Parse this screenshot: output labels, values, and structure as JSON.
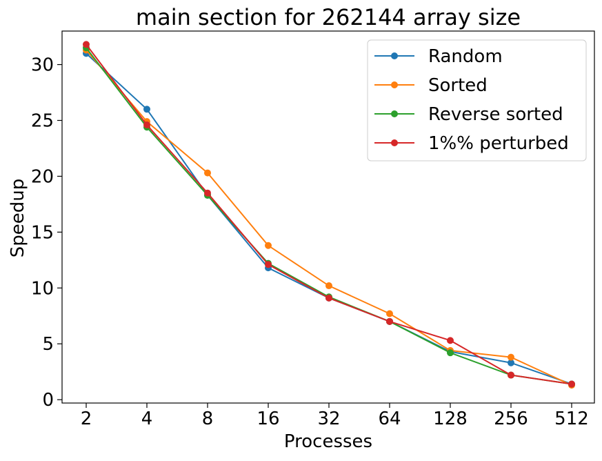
{
  "chart_data": {
    "type": "line",
    "title": "main section for 262144 array size",
    "xlabel": "Processes",
    "ylabel": "Speedup",
    "categories": [
      "2",
      "4",
      "8",
      "16",
      "32",
      "64",
      "128",
      "256",
      "512"
    ],
    "ylim": [
      -0.3,
      33.0
    ],
    "yticks": [
      0,
      5,
      10,
      15,
      20,
      25,
      30
    ],
    "grid": false,
    "legend_position": "top-right",
    "series": [
      {
        "name": "Random",
        "color": "#1f77b4",
        "values": [
          31.0,
          26.0,
          18.3,
          11.8,
          9.1,
          7.0,
          4.3,
          3.3,
          1.4
        ]
      },
      {
        "name": "Sorted",
        "color": "#ff7f0e",
        "values": [
          31.3,
          24.9,
          20.3,
          13.8,
          10.2,
          7.7,
          4.4,
          3.8,
          1.3
        ]
      },
      {
        "name": "Reverse sorted",
        "color": "#2ca02c",
        "values": [
          31.5,
          24.4,
          18.3,
          12.2,
          9.2,
          7.0,
          4.2,
          2.2,
          1.4
        ]
      },
      {
        "name": "1%% perturbed",
        "color": "#d62728",
        "values": [
          31.8,
          24.6,
          18.5,
          12.1,
          9.1,
          7.0,
          5.3,
          2.2,
          1.4
        ]
      }
    ]
  }
}
